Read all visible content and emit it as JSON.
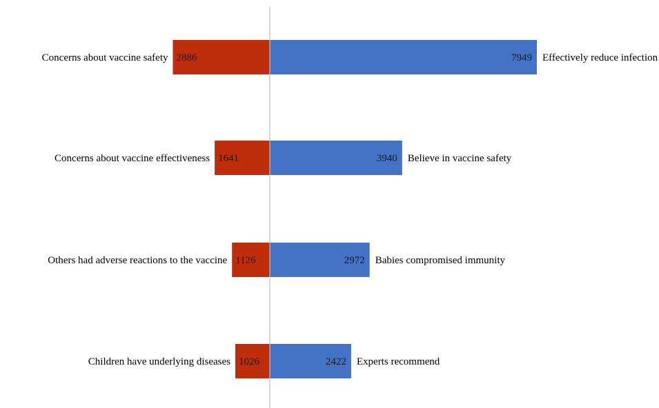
{
  "chart_data": {
    "type": "bar",
    "orientation": "horizontal-diverging",
    "title": "",
    "xlabel": "",
    "ylabel": "",
    "grid": false,
    "legend": "none",
    "rows": [
      {
        "left_label": "Concerns about vaccine safety",
        "left_value": 2886,
        "right_label": "Effectively reduce infection",
        "right_value": 7949
      },
      {
        "left_label": "Concerns about vaccine effectiveness",
        "left_value": 1641,
        "right_label": "Believe in vaccine safety",
        "right_value": 3940
      },
      {
        "left_label": "Others had adverse reactions to the vaccine",
        "left_value": 1126,
        "right_label": "Babies compromised immunity",
        "right_value": 2972
      },
      {
        "left_label": "Children have underlying diseases",
        "left_value": 1026,
        "right_label": "Experts recommend",
        "right_value": 2422
      }
    ],
    "colors": {
      "left": "#BE2E0A",
      "right": "#4472C4",
      "axis": "#BFBFBF"
    }
  }
}
